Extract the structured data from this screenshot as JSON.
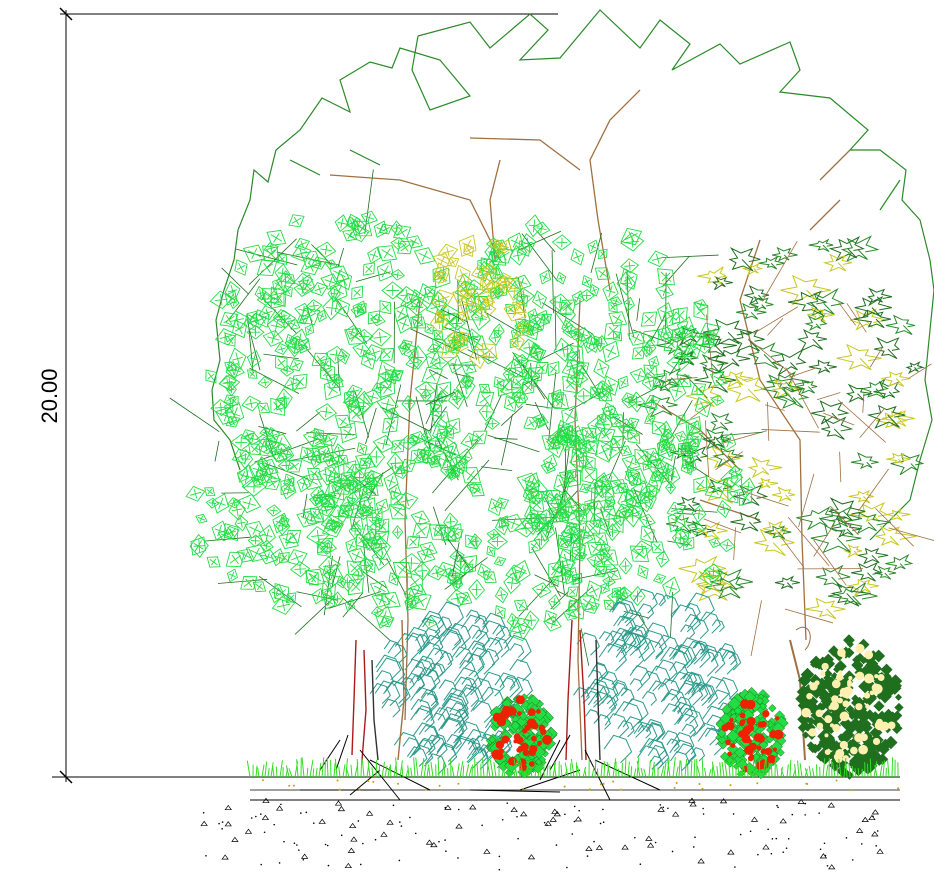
{
  "dimension": {
    "label": "20.00"
  },
  "colors": {
    "canopy_outline": "#2a8a2a",
    "branch_brown": "#a07040",
    "leaf_bright_green": "#22dd44",
    "leaf_yellow_green": "#c8c820",
    "dark_green": "#1f6f1f",
    "teal_shrub": "#2a9a8a",
    "trunk_red": "#aa1a1a",
    "flower_red": "#ee2200",
    "flower_cream": "#fff0b0",
    "grass_green": "#33dd22",
    "ground_line": "#000000",
    "soil_speck": "#c8a000"
  },
  "icons": {
    "tree_left": "deciduous-tree",
    "tree_center": "deciduous-tree",
    "tree_right": "broadleaf-tree",
    "canopy_large": "large-canopy-outline",
    "shrub_red_1": "flowering-shrub-red",
    "shrub_red_2": "flowering-shrub-red",
    "shrub_cream": "flowering-shrub-cream",
    "ground": "grass-and-soil-section"
  }
}
